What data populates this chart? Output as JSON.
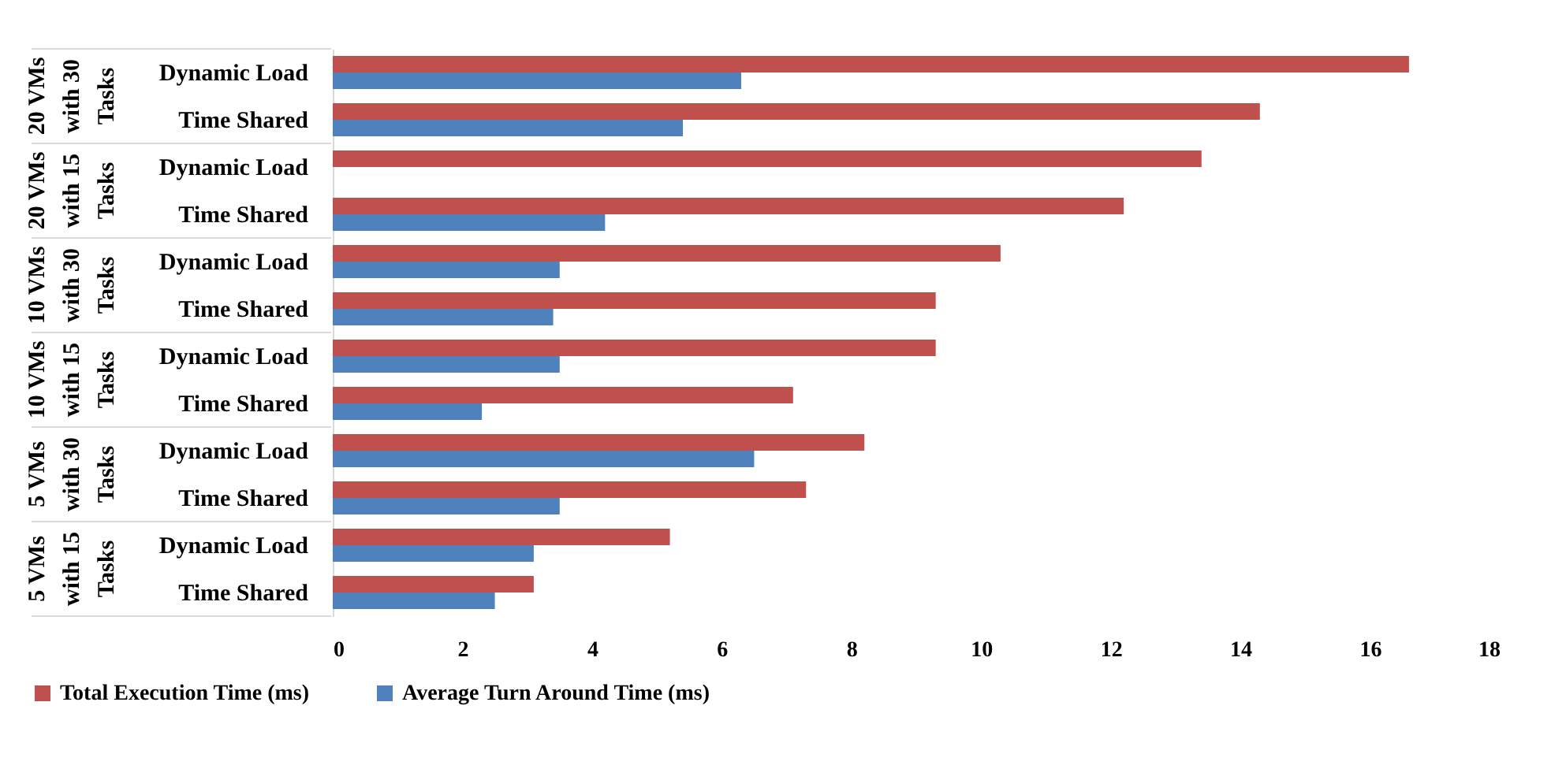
{
  "chart_data": {
    "type": "bar",
    "orientation": "horizontal",
    "categories": [
      "Dynamic Load",
      "Time Shared",
      "Dynamic Load",
      "Time Shared",
      "Dynamic Load",
      "Time Shared",
      "Dynamic Load",
      "Time Shared",
      "Dynamic Load",
      "Time Shared",
      "Dynamic Load",
      "Time Shared"
    ],
    "series": [
      {
        "name": "Total Execution Time (ms)",
        "color": "#c0504d",
        "values": [
          16.6,
          14.3,
          13.4,
          12.2,
          10.3,
          9.3,
          9.3,
          7.1,
          8.2,
          7.3,
          5.2,
          3.1
        ]
      },
      {
        "name": "Average Turn Around Time (ms)",
        "color": "#4f81bd",
        "values": [
          6.3,
          5.4,
          null,
          4.2,
          3.5,
          3.4,
          3.5,
          2.3,
          6.5,
          3.5,
          3.1,
          2.5
        ]
      }
    ],
    "annotations": [
      "20 VMs with 30 Tasks",
      "20 VMs with 15 Tasks",
      "10 VMs with 30 Tasks",
      "10 VMs with 15 Tasks",
      "5 VMs with 30 Tasks",
      "5 VMs with 15 Tasks"
    ],
    "xlim": [
      0,
      18
    ],
    "xticks": [
      0,
      2,
      4,
      6,
      8,
      10,
      12,
      14,
      16,
      18
    ],
    "legend": "bottom"
  }
}
